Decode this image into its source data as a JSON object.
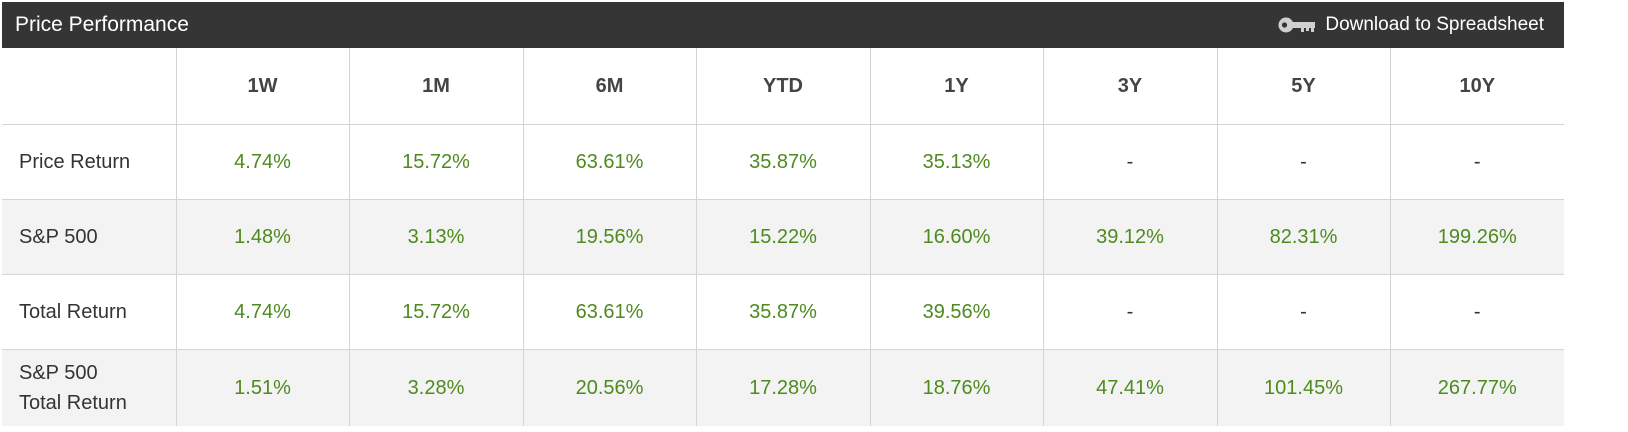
{
  "header": {
    "title": "Price Performance",
    "download_label": "Download to Spreadsheet"
  },
  "table": {
    "columns": [
      "1W",
      "1M",
      "6M",
      "YTD",
      "1Y",
      "3Y",
      "5Y",
      "10Y"
    ],
    "rows": [
      {
        "label": "Price Return",
        "values": [
          "4.74%",
          "15.72%",
          "63.61%",
          "35.87%",
          "35.13%",
          "-",
          "-",
          "-"
        ]
      },
      {
        "label": "S&P 500",
        "values": [
          "1.48%",
          "3.13%",
          "19.56%",
          "15.22%",
          "16.60%",
          "39.12%",
          "82.31%",
          "199.26%"
        ]
      },
      {
        "label": "Total Return",
        "values": [
          "4.74%",
          "15.72%",
          "63.61%",
          "35.87%",
          "39.56%",
          "-",
          "-",
          "-"
        ]
      },
      {
        "label": "S&P 500\nTotal Return",
        "values": [
          "1.51%",
          "3.28%",
          "20.56%",
          "17.28%",
          "18.76%",
          "47.41%",
          "101.45%",
          "267.77%"
        ]
      }
    ]
  },
  "colors": {
    "header_bg": "#353535",
    "positive": "#4e8a1e",
    "alt_row_bg": "#f3f3f3"
  },
  "icons": {
    "download": "key-icon"
  }
}
